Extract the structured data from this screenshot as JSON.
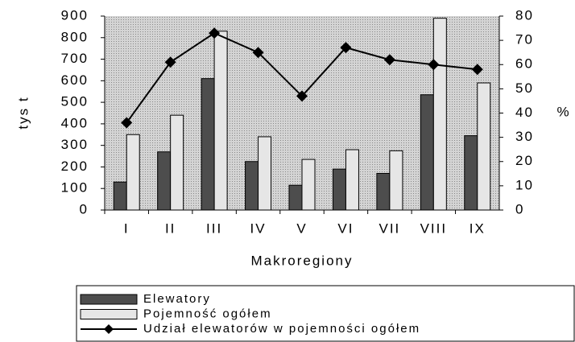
{
  "chart_data": {
    "type": "bar",
    "x_label": "Makroregiony",
    "y_label": "tys t",
    "y2_label": "%",
    "categories": [
      "I",
      "II",
      "III",
      "IV",
      "V",
      "VI",
      "VII",
      "VIII",
      "IX"
    ],
    "series": [
      {
        "name": "Elewatory",
        "color": "#4d4d4d",
        "values": [
          130,
          270,
          610,
          225,
          115,
          190,
          170,
          535,
          345
        ]
      },
      {
        "name": "Pojemność ogółem",
        "color": "#e6e6e6",
        "values": [
          350,
          440,
          830,
          340,
          235,
          280,
          275,
          890,
          590
        ]
      },
      {
        "name": "Udział elewatorów w pojemności ogółem",
        "color": "#000000",
        "type": "line",
        "axis": "y2",
        "values": [
          36,
          61,
          73,
          65,
          47,
          67,
          62,
          60,
          58
        ]
      }
    ],
    "ylim": [
      0,
      900
    ],
    "yticks": [
      0,
      100,
      200,
      300,
      400,
      500,
      600,
      700,
      800,
      900
    ],
    "y2lim": [
      0,
      80
    ],
    "y2ticks": [
      0,
      10,
      20,
      30,
      40,
      50,
      60,
      70,
      80
    ]
  }
}
